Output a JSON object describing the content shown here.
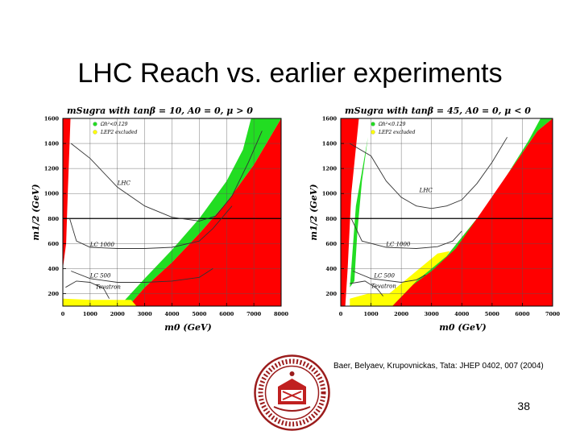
{
  "slide": {
    "title": "LHC Reach vs. earlier experiments",
    "citation": "Baer, Belyaev, Krupovnickas, Tata: JHEP 0402, 007 (2004)",
    "page_number": "38"
  },
  "colors": {
    "excluded_region": "#ff0000",
    "relic_density": "#22dd22",
    "lep2_excluded": "#ffff00",
    "reach_contours": "#333333"
  },
  "chart_data": [
    {
      "type": "line",
      "title": "mSugra with tanβ = 10, A0 = 0, μ > 0",
      "xlabel": "m0 (GeV)",
      "ylabel": "m1/2 (GeV)",
      "xlim": [
        0,
        8000
      ],
      "ylim": [
        100,
        1600
      ],
      "x_ticks": [
        "0",
        "1000",
        "2000",
        "3000",
        "4000",
        "5000",
        "6000",
        "7000",
        "8000"
      ],
      "y_ticks": [
        "200",
        "400",
        "600",
        "800",
        "1000",
        "1200",
        "1400",
        "1600"
      ],
      "grid": true,
      "legend_position": "top-left",
      "legend": [
        "Ωh²<0.129",
        "LEP2 excluded"
      ],
      "regions": [
        {
          "name": "theoretically excluded (left)",
          "color": "red",
          "points": [
            [
              0,
              1600
            ],
            [
              280,
              1600
            ],
            [
              180,
              1000
            ],
            [
              120,
              600
            ],
            [
              0,
              400
            ]
          ]
        },
        {
          "name": "theoretically excluded (right)",
          "color": "red",
          "points": [
            [
              2400,
              100
            ],
            [
              3000,
              250
            ],
            [
              4000,
              450
            ],
            [
              5000,
              680
            ],
            [
              6000,
              930
            ],
            [
              7000,
              1230
            ],
            [
              8000,
              1600
            ],
            [
              8000,
              100
            ]
          ]
        },
        {
          "name": "relic density band",
          "color": "green",
          "points": [
            [
              2200,
              130
            ],
            [
              3000,
              320
            ],
            [
              4000,
              550
            ],
            [
              5000,
              800
            ],
            [
              6000,
              1100
            ],
            [
              6600,
              1350
            ],
            [
              6900,
              1600
            ],
            [
              8000,
              1600
            ],
            [
              7000,
              1230
            ],
            [
              6000,
              930
            ],
            [
              5000,
              680
            ],
            [
              4000,
              450
            ],
            [
              3000,
              250
            ],
            [
              2400,
              100
            ]
          ]
        },
        {
          "name": "LEP2 excluded",
          "color": "yellow",
          "points": [
            [
              0,
              100
            ],
            [
              2700,
              100
            ],
            [
              2500,
              150
            ],
            [
              1000,
              150
            ],
            [
              0,
              160
            ]
          ]
        }
      ],
      "series": [
        {
          "name": "LHC",
          "points": [
            [
              300,
              1400
            ],
            [
              1000,
              1280
            ],
            [
              2000,
              1050
            ],
            [
              3000,
              900
            ],
            [
              4000,
              810
            ],
            [
              5000,
              780
            ],
            [
              5600,
              820
            ],
            [
              6200,
              980
            ],
            [
              6800,
              1250
            ],
            [
              7300,
              1500
            ]
          ]
        },
        {
          "name": "LC 1000",
          "points": [
            [
              250,
              800
            ],
            [
              500,
              620
            ],
            [
              1000,
              570
            ],
            [
              2000,
              560
            ],
            [
              3000,
              560
            ],
            [
              4000,
              570
            ],
            [
              5000,
              620
            ],
            [
              5500,
              720
            ],
            [
              6200,
              900
            ]
          ]
        },
        {
          "name": "LC 500",
          "points": [
            [
              300,
              380
            ],
            [
              1000,
              320
            ],
            [
              2000,
              290
            ],
            [
              3000,
              290
            ],
            [
              4000,
              300
            ],
            [
              5000,
              330
            ],
            [
              5500,
              400
            ]
          ]
        },
        {
          "name": "Tevatron",
          "points": [
            [
              100,
              250
            ],
            [
              500,
              300
            ],
            [
              1000,
              290
            ],
            [
              1500,
              240
            ],
            [
              1700,
              160
            ]
          ]
        }
      ]
    },
    {
      "type": "line",
      "title": "mSugra with tanβ = 45, A0 = 0, μ < 0",
      "xlabel": "m0 (GeV)",
      "ylabel": "m1/2 (GeV)",
      "xlim": [
        0,
        7000
      ],
      "ylim": [
        100,
        1600
      ],
      "x_ticks": [
        "0",
        "1000",
        "2000",
        "3000",
        "4000",
        "5000",
        "6000",
        "7000"
      ],
      "y_ticks": [
        "200",
        "400",
        "600",
        "800",
        "1000",
        "1200",
        "1400",
        "1600"
      ],
      "grid": true,
      "legend_position": "top-left",
      "legend": [
        "Ωh²<0.129",
        "LEP2 excluded"
      ],
      "regions": [
        {
          "name": "theoretically excluded (left)",
          "color": "red",
          "points": [
            [
              0,
              1600
            ],
            [
              600,
              1600
            ],
            [
              350,
              1000
            ],
            [
              230,
              400
            ],
            [
              150,
              100
            ],
            [
              0,
              100
            ]
          ]
        },
        {
          "name": "theoretically excluded (right)",
          "color": "red",
          "points": [
            [
              1700,
              100
            ],
            [
              2500,
              300
            ],
            [
              3500,
              500
            ],
            [
              4500,
              800
            ],
            [
              5500,
              1150
            ],
            [
              6500,
              1500
            ],
            [
              7000,
              1600
            ],
            [
              7000,
              100
            ]
          ]
        },
        {
          "name": "relic density funnel",
          "color": "green",
          "points": [
            [
              300,
              250
            ],
            [
              500,
              900
            ],
            [
              900,
              1450
            ],
            [
              700,
              1100
            ],
            [
              550,
              700
            ],
            [
              450,
              300
            ]
          ]
        },
        {
          "name": "relic density band",
          "color": "green",
          "points": [
            [
              2000,
              200
            ],
            [
              3000,
              380
            ],
            [
              3800,
              560
            ],
            [
              4500,
              800
            ],
            [
              5500,
              1150
            ],
            [
              6200,
              1420
            ],
            [
              6600,
              1600
            ],
            [
              7000,
              1600
            ],
            [
              6500,
              1500
            ],
            [
              5500,
              1150
            ],
            [
              4500,
              800
            ],
            [
              3500,
              500
            ],
            [
              2500,
              300
            ],
            [
              1700,
              100
            ]
          ]
        },
        {
          "name": "LEP2 excluded",
          "color": "yellow",
          "points": [
            [
              300,
              100
            ],
            [
              1700,
              100
            ],
            [
              2500,
              300
            ],
            [
              3500,
              500
            ],
            [
              3600,
              540
            ],
            [
              3200,
              520
            ],
            [
              2500,
              380
            ],
            [
              1600,
              200
            ],
            [
              900,
              200
            ],
            [
              300,
              160
            ]
          ]
        }
      ],
      "series": [
        {
          "name": "LHC",
          "points": [
            [
              300,
              1400
            ],
            [
              1000,
              1300
            ],
            [
              1500,
              1100
            ],
            [
              2000,
              970
            ],
            [
              2500,
              900
            ],
            [
              3000,
              880
            ],
            [
              3500,
              900
            ],
            [
              4000,
              950
            ],
            [
              4500,
              1080
            ],
            [
              5000,
              1250
            ],
            [
              5500,
              1450
            ]
          ]
        },
        {
          "name": "LC 1000",
          "points": [
            [
              350,
              800
            ],
            [
              700,
              620
            ],
            [
              1500,
              570
            ],
            [
              2500,
              560
            ],
            [
              3200,
              575
            ],
            [
              3700,
              620
            ],
            [
              4000,
              700
            ]
          ]
        },
        {
          "name": "LC 500",
          "points": [
            [
              400,
              380
            ],
            [
              1000,
              320
            ],
            [
              2000,
              290
            ],
            [
              2500,
              310
            ],
            [
              2800,
              350
            ]
          ]
        },
        {
          "name": "Tevatron",
          "points": [
            [
              300,
              280
            ],
            [
              800,
              300
            ],
            [
              1200,
              240
            ],
            [
              1400,
              180
            ]
          ]
        }
      ]
    }
  ]
}
